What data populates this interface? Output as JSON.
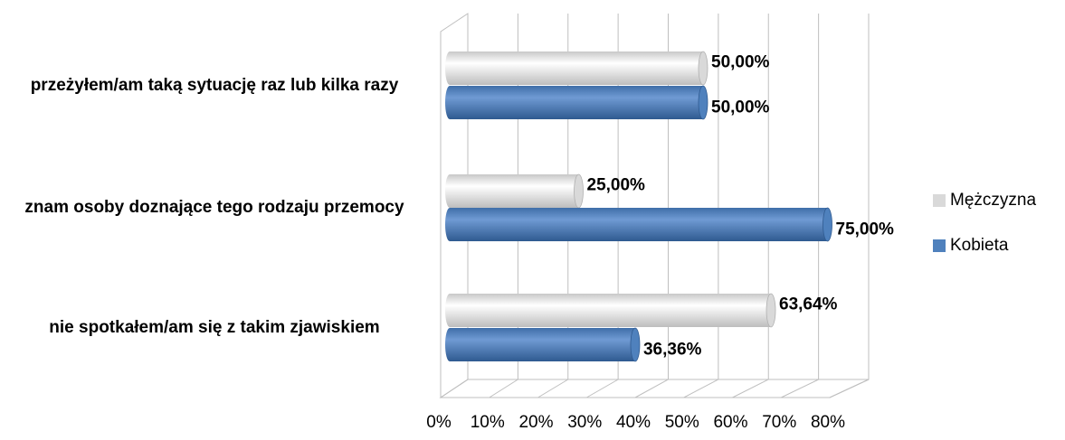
{
  "chart_data": {
    "type": "bar",
    "orientation": "horizontal",
    "categories": [
      "przeżyłem/am taką sytuację raz lub kilka razy",
      "znam osoby doznające tego rodzaju przemocy",
      "nie spotkałem/am się z takim zjawiskiem"
    ],
    "series": [
      {
        "name": "Mężczyzna",
        "color": "#d9d9d9",
        "values": [
          50,
          25,
          63.64
        ],
        "value_labels": [
          "50,00%",
          "25,00%",
          "63,64%"
        ]
      },
      {
        "name": "Kobieta",
        "color": "#4f81bd",
        "values": [
          50,
          75,
          36.36
        ],
        "value_labels": [
          "50,00%",
          "75,00%",
          "36,36%"
        ]
      }
    ],
    "xlim": [
      0,
      80
    ],
    "xticks": [
      {
        "value": 0,
        "label": "0%"
      },
      {
        "value": 10,
        "label": "10%"
      },
      {
        "value": 20,
        "label": "20%"
      },
      {
        "value": 30,
        "label": "30%"
      },
      {
        "value": 40,
        "label": "40%"
      },
      {
        "value": 50,
        "label": "50%"
      },
      {
        "value": 60,
        "label": "60%"
      },
      {
        "value": 70,
        "label": "70%"
      },
      {
        "value": 80,
        "label": "80%"
      }
    ],
    "grid": true,
    "legend": "right"
  }
}
